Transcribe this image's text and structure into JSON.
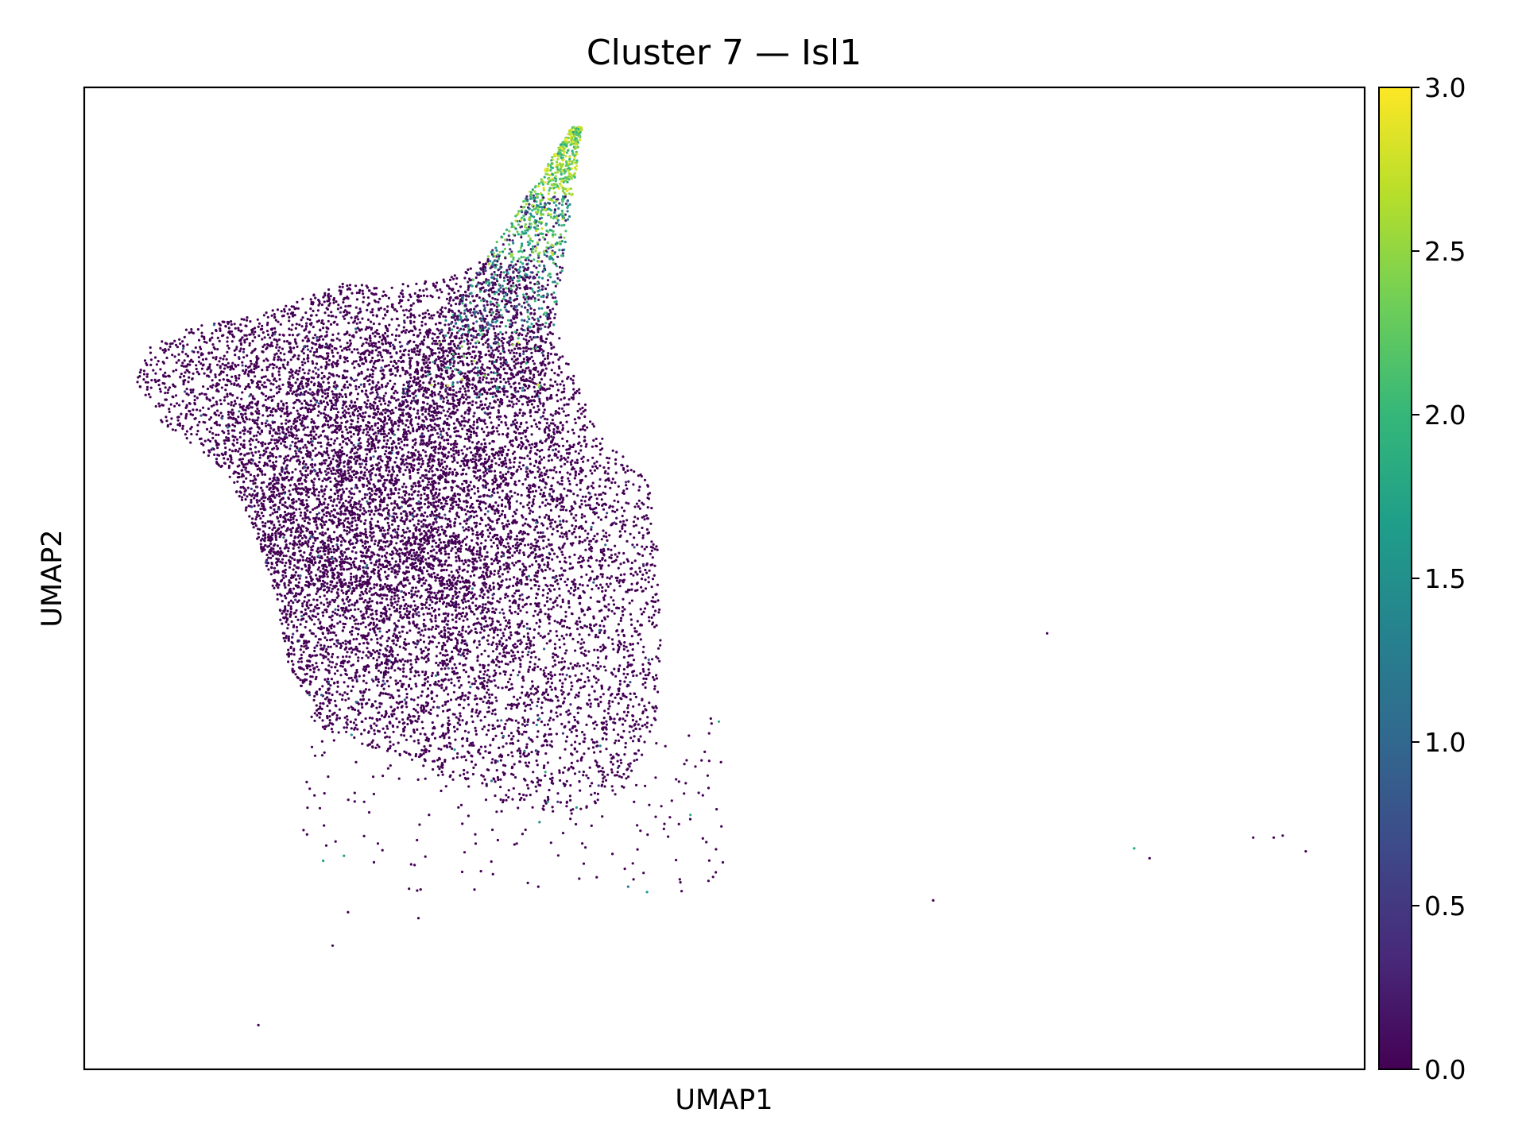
{
  "chart_data": {
    "type": "scatter",
    "title": "Cluster 7 — Isl1",
    "xlabel": "UMAP1",
    "ylabel": "UMAP2",
    "xlim": [
      0,
      100
    ],
    "ylim": [
      0,
      100
    ],
    "axis_ticks": false,
    "grid": false,
    "legend": "none",
    "colormap": "viridis",
    "colormap_stops": [
      "#440154",
      "#482878",
      "#3e4989",
      "#31688e",
      "#26828e",
      "#1f9e89",
      "#35b779",
      "#6ece58",
      "#b5de2b",
      "#fde725"
    ],
    "colorbar": {
      "vmin": 0.0,
      "vmax": 3.0,
      "ticks": [
        0.0,
        0.5,
        1.0,
        1.5,
        2.0,
        2.5,
        3.0
      ],
      "tick_labels": [
        "0.0",
        "0.5",
        "1.0",
        "1.5",
        "2.0",
        "2.5",
        "3.0"
      ],
      "position": "right"
    },
    "point_color_background": "#440154",
    "point_count_approx": 14000,
    "point_density_regions": [
      {
        "region": "main-body",
        "x_range": [
          6,
          45
        ],
        "y_range": [
          17,
          80
        ],
        "expression": 0.05
      },
      {
        "region": "dense-core",
        "x_range": [
          15,
          32
        ],
        "y_range": [
          38,
          72
        ],
        "expression": 0.05
      },
      {
        "region": "apex-stalk",
        "x_range": [
          31,
          39
        ],
        "y_range": [
          75,
          96
        ],
        "expression": 2.3
      }
    ],
    "outlier_points": [
      {
        "x": 13.6,
        "y": 4.5,
        "value": 0.0
      },
      {
        "x": 19.4,
        "y": 12.6,
        "value": 0.0
      },
      {
        "x": 20.6,
        "y": 16.0,
        "value": 0.0
      },
      {
        "x": 26.1,
        "y": 15.4,
        "value": 0.0
      },
      {
        "x": 26.0,
        "y": 18.2,
        "value": 0.0
      },
      {
        "x": 25.8,
        "y": 20.8,
        "value": 0.0
      },
      {
        "x": 29.7,
        "y": 22.1,
        "value": 0.0
      },
      {
        "x": 33.6,
        "y": 22.9,
        "value": 0.0
      },
      {
        "x": 44.0,
        "y": 23.9,
        "value": 0.0
      },
      {
        "x": 45.6,
        "y": 23.7,
        "value": 0.0
      },
      {
        "x": 66.3,
        "y": 17.2,
        "value": 0.0
      },
      {
        "x": 75.2,
        "y": 44.4,
        "value": 0.0
      },
      {
        "x": 82.0,
        "y": 22.5,
        "value": 1.8
      },
      {
        "x": 83.2,
        "y": 21.5,
        "value": 0.0
      },
      {
        "x": 91.3,
        "y": 23.6,
        "value": 0.0
      },
      {
        "x": 92.9,
        "y": 23.6,
        "value": 0.0
      },
      {
        "x": 93.6,
        "y": 23.8,
        "value": 0.0
      },
      {
        "x": 95.4,
        "y": 22.2,
        "value": 0.0
      }
    ]
  }
}
